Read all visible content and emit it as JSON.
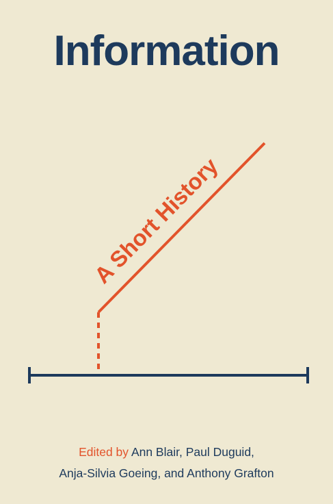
{
  "cover": {
    "title": "Information",
    "subtitle": "A Short History",
    "edited_by_label": "Edited by",
    "editors_line1": "Ann Blair, Paul Duguid,",
    "editors_line2": "Anja-Silvia Goeing, and Anthony Grafton"
  },
  "colors": {
    "background": "#efe9d2",
    "navy": "#1d3a5c",
    "orange": "#e2532b"
  }
}
